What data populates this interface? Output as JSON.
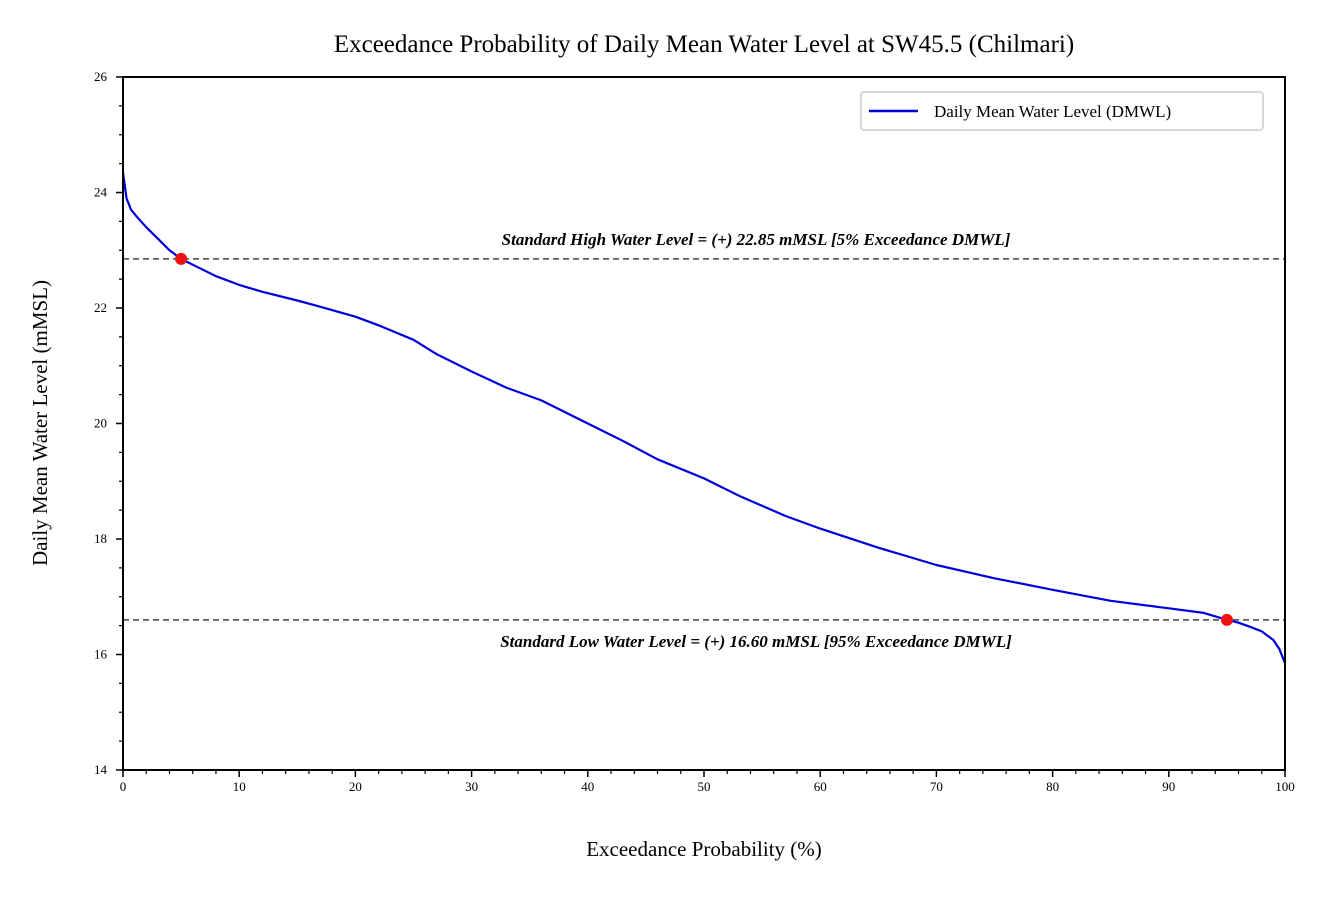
{
  "chart_data": {
    "type": "line",
    "title": "Exceedance Probability of Daily Mean Water Level at SW45.5 (Chilmari)",
    "xlabel": "Exceedance Probability (%)",
    "ylabel": "Daily Mean Water Level (mMSL)",
    "xlim": [
      0,
      100
    ],
    "ylim": [
      14,
      26
    ],
    "x_ticks": [
      0,
      10,
      20,
      30,
      40,
      50,
      60,
      70,
      80,
      90,
      100
    ],
    "y_ticks": [
      14,
      16,
      18,
      20,
      22,
      24,
      26
    ],
    "x_tick_labels": [
      "0",
      "10",
      "20",
      "30",
      "40",
      "50",
      "60",
      "70",
      "80",
      "90",
      "100"
    ],
    "y_tick_labels": [
      "14",
      "16",
      "18",
      "20",
      "22",
      "24",
      "26"
    ],
    "grid": false,
    "legend_position": "upper-right",
    "series": [
      {
        "name": "Daily Mean Water Level (DMWL)",
        "color": "#0000dd",
        "x": [
          0,
          0.3,
          0.7,
          1.2,
          2,
          3,
          4,
          5,
          6,
          8,
          10,
          12,
          15,
          17,
          20,
          22,
          25,
          27,
          30,
          33,
          36,
          40,
          43,
          46,
          50,
          53,
          57,
          60,
          65,
          70,
          75,
          80,
          85,
          90,
          93,
          95,
          96,
          97,
          98,
          99,
          99.5,
          100
        ],
        "y": [
          24.35,
          23.9,
          23.7,
          23.58,
          23.4,
          23.2,
          23.0,
          22.85,
          22.75,
          22.55,
          22.4,
          22.28,
          22.13,
          22.02,
          21.85,
          21.7,
          21.45,
          21.2,
          20.9,
          20.62,
          20.4,
          20.0,
          19.7,
          19.38,
          19.05,
          18.75,
          18.4,
          18.18,
          17.85,
          17.55,
          17.32,
          17.12,
          16.93,
          16.8,
          16.72,
          16.6,
          16.55,
          16.48,
          16.4,
          16.25,
          16.1,
          15.85
        ]
      }
    ],
    "reference_lines": [
      {
        "y": 22.85,
        "label": "Standard High Water Level = (+) 22.85 mMSL [5% Exceedance DMWL]",
        "marker_x": 5,
        "color": "#444444",
        "marker_color": "#ee1111"
      },
      {
        "y": 16.6,
        "label": "Standard Low Water Level = (+) 16.60 mMSL [95% Exceedance DMWL]",
        "marker_x": 95,
        "color": "#444444",
        "marker_color": "#ee1111"
      }
    ]
  }
}
